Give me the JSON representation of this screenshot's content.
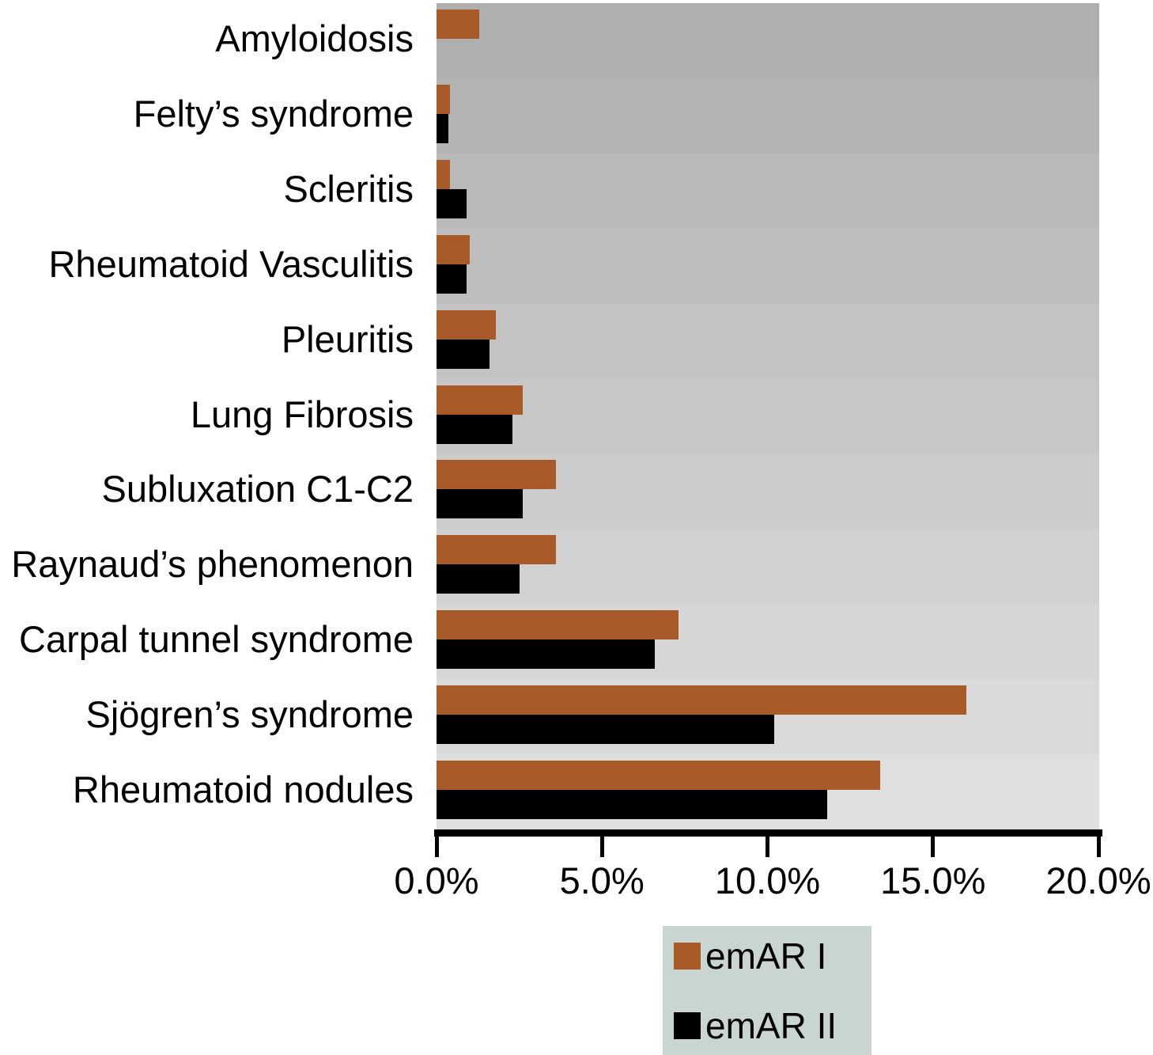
{
  "colors": {
    "emar1": "#a85a28",
    "emar2": "#000000",
    "legend_bg": "#c9d5d1",
    "axis": "#000000",
    "plot_bg_top": "#afafaf",
    "plot_bg_bottom": "#dfdfdf",
    "text": "#000000"
  },
  "chart_data": {
    "type": "bar",
    "orientation": "horizontal",
    "title": "",
    "xlabel": "",
    "ylabel": "",
    "grid": false,
    "categories": [
      "Amyloidosis",
      "Felty’s syndrome",
      "Scleritis",
      "Rheumatoid Vasculitis",
      "Pleuritis",
      "Lung Fibrosis",
      "Subluxation C1-C2",
      "Raynaud’s phenomenon",
      "Carpal tunnel syndrome",
      "Sjögren’s syndrome",
      "Rheumatoid nodules"
    ],
    "series": [
      {
        "name": "emAR I",
        "color": "#a85a28",
        "values": [
          1.3,
          0.4,
          0.4,
          1.0,
          1.8,
          2.6,
          3.6,
          3.6,
          7.3,
          16.0,
          13.4
        ]
      },
      {
        "name": "emAR II",
        "color": "#000000",
        "values": [
          0,
          0.35,
          0.9,
          0.9,
          1.6,
          2.3,
          2.6,
          2.5,
          6.6,
          10.2,
          11.8
        ]
      }
    ],
    "x_axis": {
      "ticks": [
        "0.0%",
        "5.0%",
        "10.0%",
        "15.0%",
        "20.0%"
      ],
      "tick_values": [
        0,
        5,
        10,
        15,
        20
      ],
      "min": 0,
      "max": 20,
      "unit": "percent"
    },
    "legend": {
      "position": "bottom-center",
      "items": [
        "emAR I",
        "emAR II"
      ]
    }
  }
}
